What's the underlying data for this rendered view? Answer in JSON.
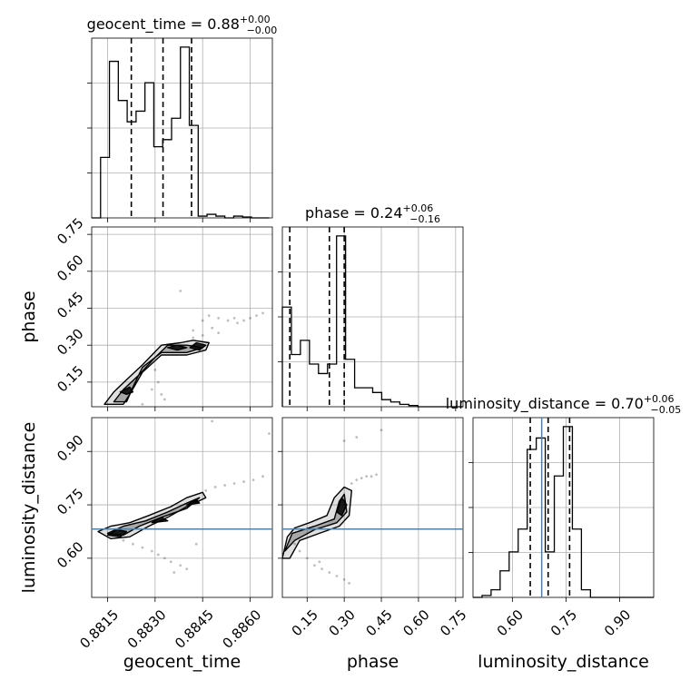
{
  "chart_data": {
    "type": "corner",
    "parameters": [
      "geocent_time",
      "phase",
      "luminosity_distance"
    ],
    "titles": [
      {
        "param": "geocent_time",
        "value": "0.88",
        "plus": "+0.00",
        "minus": "−0.00"
      },
      {
        "param": "phase",
        "value": "0.24",
        "plus": "+0.06",
        "minus": "−0.16"
      },
      {
        "param": "luminosity_distance",
        "value": "0.70",
        "plus": "+0.06",
        "minus": "−0.05"
      }
    ],
    "ranges": {
      "geocent_time": [
        0.881,
        0.8867
      ],
      "phase": [
        0.05,
        0.78
      ],
      "luminosity_distance": [
        0.49,
        0.995
      ]
    },
    "ticks": {
      "geocent_time": [
        "0.8815",
        "0.8830",
        "0.8845",
        "0.8860"
      ],
      "phase": [
        "0.15",
        "0.30",
        "0.45",
        "0.60",
        "0.75"
      ],
      "luminosity_distance": [
        "0.60",
        "0.75",
        "0.90"
      ]
    },
    "histograms": {
      "geocent_time": {
        "edges_start": 0.881,
        "bin_width": 0.00028,
        "counts": [
          0.0,
          0.34,
          0.88,
          0.66,
          0.54,
          0.6,
          0.76,
          0.4,
          0.44,
          0.56,
          0.96,
          0.52,
          0.01,
          0.02,
          0.01,
          0.0,
          0.01,
          0.005,
          0.0,
          0.0
        ]
      },
      "phase": {
        "edges_start": 0.05,
        "bin_width": 0.0365,
        "counts": [
          0.42,
          0.22,
          0.28,
          0.18,
          0.14,
          0.18,
          0.72,
          0.2,
          0.08,
          0.08,
          0.06,
          0.03,
          0.02,
          0.01,
          0.005,
          0.0,
          0.0,
          0.0,
          0.0,
          0.0
        ]
      },
      "luminosity_distance": {
        "edges_start": 0.49,
        "bin_width": 0.02525,
        "counts": [
          0.0,
          0.01,
          0.04,
          0.14,
          0.24,
          0.36,
          0.78,
          0.84,
          0.24,
          0.64,
          0.9,
          0.36,
          0.04,
          0.0,
          0.0,
          0.0,
          0.0,
          0.0,
          0.0,
          0.0
        ]
      }
    },
    "quantiles": {
      "geocent_time": [
        0.88225,
        0.88325,
        0.88415
      ],
      "phase": [
        0.08,
        0.24,
        0.3
      ],
      "luminosity_distance": [
        0.65,
        0.7,
        0.76
      ]
    },
    "truths": {
      "luminosity_distance": 0.682
    },
    "contours_2d": {
      "phase_vs_geocent_time": [
        [
          [
            0.8814,
            0.06
          ],
          [
            0.8817,
            0.11
          ],
          [
            0.8821,
            0.16
          ],
          [
            0.8826,
            0.22
          ],
          [
            0.8832,
            0.3
          ],
          [
            0.8838,
            0.31
          ],
          [
            0.8842,
            0.32
          ],
          [
            0.8847,
            0.31
          ],
          [
            0.8846,
            0.28
          ],
          [
            0.884,
            0.26
          ],
          [
            0.8832,
            0.26
          ],
          [
            0.8826,
            0.19
          ],
          [
            0.8822,
            0.1
          ],
          [
            0.882,
            0.06
          ]
        ],
        [
          [
            0.8817,
            0.07
          ],
          [
            0.882,
            0.12
          ],
          [
            0.8825,
            0.18
          ],
          [
            0.883,
            0.25
          ],
          [
            0.8834,
            0.3
          ],
          [
            0.884,
            0.3
          ],
          [
            0.8845,
            0.29
          ],
          [
            0.884,
            0.27
          ],
          [
            0.8832,
            0.27
          ],
          [
            0.8826,
            0.21
          ],
          [
            0.8823,
            0.13
          ],
          [
            0.8821,
            0.07
          ]
        ],
        [
          [
            0.8834,
            0.29
          ],
          [
            0.8837,
            0.3
          ],
          [
            0.884,
            0.29
          ],
          [
            0.8837,
            0.28
          ]
        ],
        [
          [
            0.8841,
            0.29
          ],
          [
            0.8843,
            0.31
          ],
          [
            0.8846,
            0.3
          ],
          [
            0.8844,
            0.28
          ]
        ],
        [
          [
            0.8819,
            0.11
          ],
          [
            0.8822,
            0.13
          ],
          [
            0.8823,
            0.11
          ],
          [
            0.8821,
            0.1
          ]
        ]
      ],
      "luminosity_distance_vs_geocent_time": [
        [
          [
            0.8812,
            0.675
          ],
          [
            0.8816,
            0.69
          ],
          [
            0.8822,
            0.7
          ],
          [
            0.8828,
            0.72
          ],
          [
            0.8835,
            0.745
          ],
          [
            0.884,
            0.77
          ],
          [
            0.8845,
            0.785
          ],
          [
            0.8846,
            0.77
          ],
          [
            0.884,
            0.745
          ],
          [
            0.8834,
            0.715
          ],
          [
            0.8828,
            0.69
          ],
          [
            0.8822,
            0.66
          ],
          [
            0.8816,
            0.655
          ]
        ],
        [
          [
            0.8815,
            0.67
          ],
          [
            0.882,
            0.69
          ],
          [
            0.8827,
            0.705
          ],
          [
            0.8834,
            0.73
          ],
          [
            0.884,
            0.755
          ],
          [
            0.8844,
            0.77
          ],
          [
            0.884,
            0.74
          ],
          [
            0.8832,
            0.715
          ],
          [
            0.8825,
            0.69
          ],
          [
            0.882,
            0.665
          ]
        ],
        [
          [
            0.8815,
            0.665
          ],
          [
            0.8818,
            0.68
          ],
          [
            0.8821,
            0.675
          ],
          [
            0.8819,
            0.66
          ]
        ],
        [
          [
            0.8829,
            0.7
          ],
          [
            0.8832,
            0.715
          ],
          [
            0.8834,
            0.705
          ]
        ],
        [
          [
            0.884,
            0.75
          ],
          [
            0.8843,
            0.765
          ],
          [
            0.8844,
            0.755
          ]
        ]
      ],
      "luminosity_distance_vs_phase": [
        [
          [
            0.05,
            0.6
          ],
          [
            0.07,
            0.66
          ],
          [
            0.1,
            0.685
          ],
          [
            0.16,
            0.7
          ],
          [
            0.23,
            0.72
          ],
          [
            0.26,
            0.77
          ],
          [
            0.3,
            0.8
          ],
          [
            0.33,
            0.79
          ],
          [
            0.32,
            0.72
          ],
          [
            0.28,
            0.69
          ],
          [
            0.2,
            0.67
          ],
          [
            0.12,
            0.65
          ],
          [
            0.08,
            0.6
          ]
        ],
        [
          [
            0.06,
            0.62
          ],
          [
            0.09,
            0.67
          ],
          [
            0.18,
            0.69
          ],
          [
            0.26,
            0.71
          ],
          [
            0.28,
            0.76
          ],
          [
            0.3,
            0.78
          ],
          [
            0.31,
            0.73
          ],
          [
            0.27,
            0.7
          ],
          [
            0.18,
            0.68
          ],
          [
            0.1,
            0.65
          ]
        ],
        [
          [
            0.27,
            0.73
          ],
          [
            0.29,
            0.77
          ],
          [
            0.31,
            0.75
          ],
          [
            0.29,
            0.72
          ]
        ]
      ]
    },
    "scatter_2d": {
      "phase_vs_geocent_time": [
        [
          0.8847,
          0.42
        ],
        [
          0.885,
          0.41
        ],
        [
          0.8853,
          0.4
        ],
        [
          0.8856,
          0.39
        ],
        [
          0.8858,
          0.4
        ],
        [
          0.886,
          0.41
        ],
        [
          0.8862,
          0.42
        ],
        [
          0.8864,
          0.43
        ],
        [
          0.8845,
          0.4
        ],
        [
          0.8848,
          0.37
        ],
        [
          0.885,
          0.35
        ],
        [
          0.8845,
          0.34
        ],
        [
          0.8842,
          0.33
        ],
        [
          0.883,
          0.2
        ],
        [
          0.8831,
          0.15
        ],
        [
          0.8832,
          0.1
        ],
        [
          0.8833,
          0.08
        ],
        [
          0.8829,
          0.12
        ],
        [
          0.8826,
          0.06
        ],
        [
          0.8838,
          0.52
        ],
        [
          0.8855,
          0.41
        ],
        [
          0.8842,
          0.36
        ]
      ],
      "luminosity_distance_vs_geocent_time": [
        [
          0.8846,
          0.79
        ],
        [
          0.8849,
          0.8
        ],
        [
          0.8852,
          0.805
        ],
        [
          0.8855,
          0.81
        ],
        [
          0.8858,
          0.815
        ],
        [
          0.8861,
          0.82
        ],
        [
          0.8864,
          0.83
        ],
        [
          0.882,
          0.65
        ],
        [
          0.8823,
          0.64
        ],
        [
          0.8826,
          0.63
        ],
        [
          0.8829,
          0.62
        ],
        [
          0.8831,
          0.61
        ],
        [
          0.8833,
          0.6
        ],
        [
          0.8835,
          0.59
        ],
        [
          0.8838,
          0.58
        ],
        [
          0.884,
          0.57
        ],
        [
          0.8848,
          0.985
        ],
        [
          0.8866,
          0.95
        ],
        [
          0.8843,
          0.64
        ],
        [
          0.8836,
          0.56
        ]
      ],
      "luminosity_distance_vs_phase": [
        [
          0.33,
          0.81
        ],
        [
          0.35,
          0.82
        ],
        [
          0.37,
          0.825
        ],
        [
          0.39,
          0.83
        ],
        [
          0.41,
          0.83
        ],
        [
          0.43,
          0.835
        ],
        [
          0.12,
          0.62
        ],
        [
          0.15,
          0.6
        ],
        [
          0.18,
          0.58
        ],
        [
          0.21,
          0.57
        ],
        [
          0.24,
          0.56
        ],
        [
          0.27,
          0.55
        ],
        [
          0.3,
          0.54
        ],
        [
          0.32,
          0.53
        ],
        [
          0.3,
          0.93
        ],
        [
          0.35,
          0.94
        ],
        [
          0.45,
          0.96
        ],
        [
          0.1,
          0.64
        ],
        [
          0.2,
          0.59
        ]
      ]
    },
    "grid": true
  }
}
